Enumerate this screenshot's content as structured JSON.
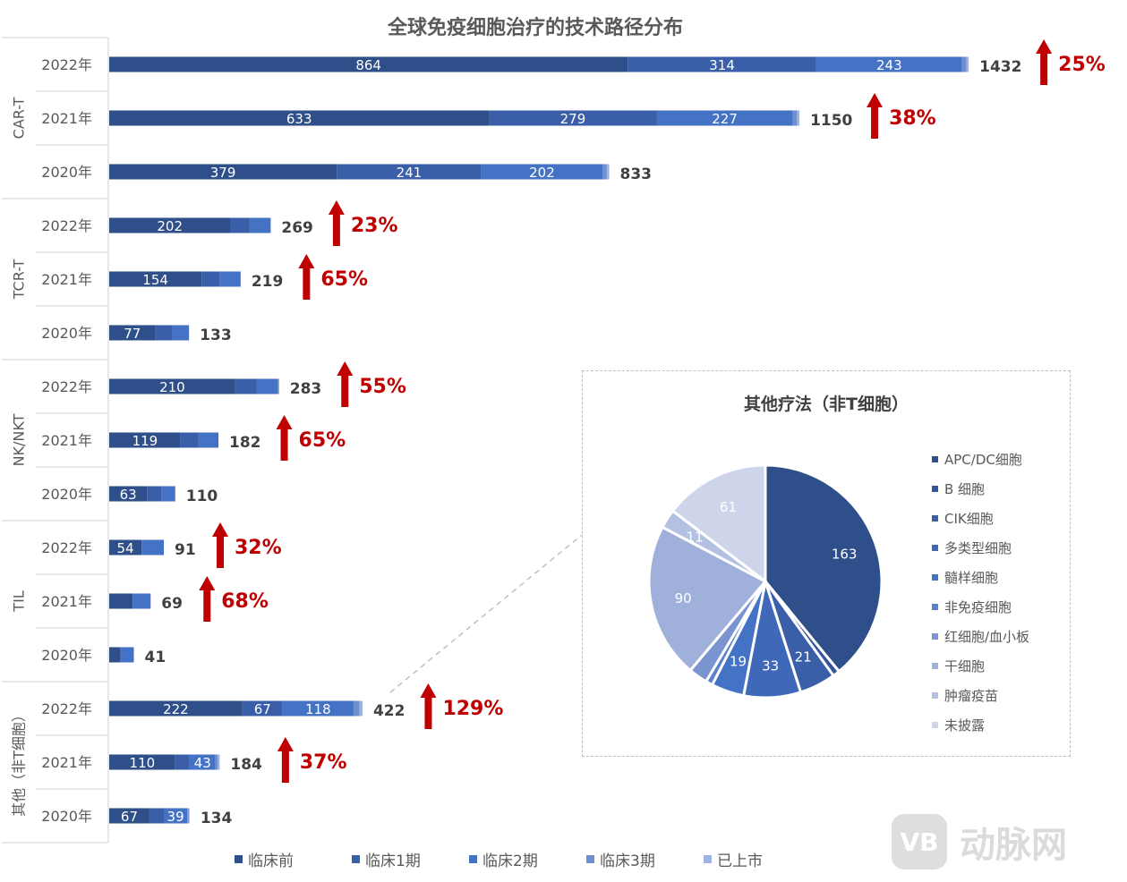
{
  "chart_data": [
    {
      "type": "bar",
      "orientation": "horizontal",
      "stacked": true,
      "title": "全球免疫细胞治疗的技术路径分布",
      "stages": [
        "临床前",
        "临床1期",
        "临床2期",
        "临床3期",
        "已上市"
      ],
      "stage_colors": [
        "#2e4f8a",
        "#3a5ea8",
        "#4472c4",
        "#6e8fd0",
        "#9fb3e0"
      ],
      "up_arrow_color": "#c00000",
      "groups": [
        {
          "name": "CAR-T",
          "rows": [
            {
              "year": "2022年",
              "values": [
                864,
                314,
                243,
                7,
                4
              ],
              "labels": [
                "864",
                "314",
                "243",
                "",
                ""
              ],
              "total": "1432",
              "growth": "25%"
            },
            {
              "year": "2021年",
              "values": [
                633,
                279,
                227,
                7,
                4
              ],
              "labels": [
                "633",
                "279",
                "227",
                "",
                ""
              ],
              "total": "1150",
              "growth": "38%"
            },
            {
              "year": "2020年",
              "values": [
                379,
                241,
                202,
                7,
                4
              ],
              "labels": [
                "379",
                "241",
                "202",
                "",
                ""
              ],
              "total": "833",
              "growth": ""
            }
          ]
        },
        {
          "name": "TCR-T",
          "rows": [
            {
              "year": "2022年",
              "values": [
                202,
                32,
                35,
                0,
                0
              ],
              "labels": [
                "202",
                "",
                "",
                "",
                ""
              ],
              "total": "269",
              "growth": "23%"
            },
            {
              "year": "2021年",
              "values": [
                154,
                30,
                35,
                0,
                0
              ],
              "labels": [
                "154",
                "",
                "",
                "",
                ""
              ],
              "total": "219",
              "growth": "65%"
            },
            {
              "year": "2020年",
              "values": [
                77,
                28,
                28,
                0,
                0
              ],
              "labels": [
                "77",
                "",
                "",
                "",
                ""
              ],
              "total": "133",
              "growth": ""
            }
          ]
        },
        {
          "name": "NK/NKT",
          "rows": [
            {
              "year": "2022年",
              "values": [
                210,
                36,
                35,
                2,
                0
              ],
              "labels": [
                "210",
                "",
                "",
                "",
                ""
              ],
              "total": "283",
              "growth": "55%"
            },
            {
              "year": "2021年",
              "values": [
                119,
                30,
                33,
                0,
                0
              ],
              "labels": [
                "119",
                "",
                "",
                "",
                ""
              ],
              "total": "182",
              "growth": "65%"
            },
            {
              "year": "2020年",
              "values": [
                63,
                24,
                23,
                0,
                0
              ],
              "labels": [
                "63",
                "",
                "",
                "",
                ""
              ],
              "total": "110",
              "growth": ""
            }
          ]
        },
        {
          "name": "TIL",
          "rows": [
            {
              "year": "2022年",
              "values": [
                54,
                0,
                37,
                0,
                0
              ],
              "labels": [
                "54",
                "",
                "",
                "",
                ""
              ],
              "total": "91",
              "growth": "32%"
            },
            {
              "year": "2021年",
              "values": [
                39,
                0,
                30,
                0,
                0
              ],
              "labels": [
                "",
                "",
                "",
                "",
                ""
              ],
              "total": "69",
              "growth": "68%"
            },
            {
              "year": "2020年",
              "values": [
                19,
                0,
                22,
                0,
                0
              ],
              "labels": [
                "",
                "",
                "",
                "",
                ""
              ],
              "total": "41",
              "growth": ""
            }
          ]
        },
        {
          "name": "其他（非T细胞）",
          "rows": [
            {
              "year": "2022年",
              "values": [
                222,
                67,
                118,
                10,
                5
              ],
              "labels": [
                "222",
                "67",
                "118",
                "",
                ""
              ],
              "total": "422",
              "growth": "129%"
            },
            {
              "year": "2021年",
              "values": [
                110,
                24,
                43,
                4,
                3
              ],
              "labels": [
                "110",
                "",
                "43",
                "",
                ""
              ],
              "total": "184",
              "growth": "37%"
            },
            {
              "year": "2020年",
              "values": [
                67,
                24,
                39,
                2,
                2
              ],
              "labels": [
                "67",
                "",
                "39",
                "",
                ""
              ],
              "total": "134",
              "growth": ""
            }
          ]
        }
      ]
    },
    {
      "type": "pie",
      "title": "其他疗法（非T细胞）",
      "slices": [
        {
          "label": "APC/DC细胞",
          "value": 163,
          "color": "#2e4f8a",
          "data_label": "163"
        },
        {
          "label": "B 细胞",
          "value": 4,
          "color": "#3355a0",
          "data_label": ""
        },
        {
          "label": "CIK细胞",
          "value": 21,
          "color": "#3a5ea8",
          "data_label": "21"
        },
        {
          "label": "多类型细胞",
          "value": 33,
          "color": "#4068b8",
          "data_label": "33"
        },
        {
          "label": "髓样细胞",
          "value": 19,
          "color": "#4472c4",
          "data_label": "19"
        },
        {
          "label": "非免疫细胞",
          "value": 4,
          "color": "#5a82cc",
          "data_label": ""
        },
        {
          "label": "红细胞/血小板",
          "value": 11,
          "color": "#7a94cf",
          "data_label": ""
        },
        {
          "label": "干细胞",
          "value": 90,
          "color": "#9fb0db",
          "data_label": "90"
        },
        {
          "label": "肿瘤疫苗",
          "value": 11,
          "color": "#b4c1e3",
          "data_label": "11"
        },
        {
          "label": "未披露",
          "value": 61,
          "color": "#ced5ea",
          "data_label": "61"
        }
      ]
    }
  ],
  "watermark": {
    "logo_text": "VB",
    "text": "动脉网"
  }
}
